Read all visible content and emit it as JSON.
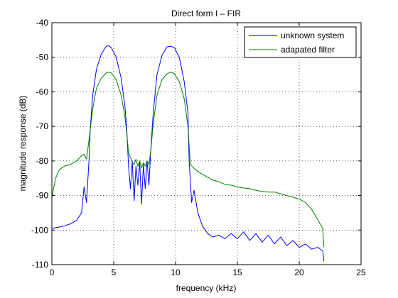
{
  "chart_data": {
    "type": "line",
    "title": "Direct form I – FIR",
    "xlabel": "frequency (kHz)",
    "ylabel": "magnitude response (dB)",
    "xlim": [
      0,
      25
    ],
    "ylim": [
      -110,
      -40
    ],
    "xticks": [
      0,
      5,
      10,
      15,
      20,
      25
    ],
    "yticks": [
      -40,
      -50,
      -60,
      -70,
      -80,
      -90,
      -100,
      -110
    ],
    "grid": "dotted",
    "legend_position": "top-right",
    "series": [
      {
        "name": "unknown system",
        "color": "#0000ff",
        "x": [
          0,
          0.5,
          1.0,
          1.5,
          2.0,
          2.4,
          2.6,
          2.8,
          3.0,
          3.1,
          3.3,
          3.6,
          4.0,
          4.4,
          4.6,
          4.8,
          5.2,
          5.6,
          5.9,
          6.05,
          6.2,
          6.35,
          6.5,
          6.65,
          6.8,
          6.95,
          7.1,
          7.25,
          7.4,
          7.55,
          7.7,
          7.85,
          8.0,
          8.2,
          8.5,
          8.9,
          9.3,
          9.6,
          9.9,
          10.3,
          10.7,
          11.0,
          11.1,
          11.3,
          11.5,
          11.8,
          12.2,
          12.6,
          13.0,
          13.5,
          14.0,
          14.5,
          15.0,
          15.5,
          16.0,
          16.5,
          17.0,
          17.5,
          18.0,
          18.5,
          19.0,
          19.5,
          20.0,
          20.5,
          21.0,
          21.5,
          21.9,
          22.0
        ],
        "values": [
          -99.5,
          -99.2,
          -98.8,
          -98.2,
          -97.2,
          -95.0,
          -87.5,
          -92.0,
          -80.0,
          -71.0,
          -61.0,
          -53.5,
          -49.0,
          -46.8,
          -46.7,
          -47.2,
          -50.0,
          -56.0,
          -64.0,
          -70.5,
          -81.5,
          -88.0,
          -80.0,
          -91.5,
          -81.5,
          -87.0,
          -80.5,
          -92.5,
          -81.0,
          -88.0,
          -80.0,
          -87.0,
          -76.5,
          -66.0,
          -55.0,
          -49.5,
          -47.0,
          -46.8,
          -47.2,
          -50.0,
          -57.0,
          -66.0,
          -80.0,
          -92.0,
          -88.5,
          -95.0,
          -99.0,
          -101.0,
          -102.0,
          -101.5,
          -102.5,
          -101.0,
          -102.5,
          -100.5,
          -103.0,
          -101.0,
          -103.5,
          -101.5,
          -104.0,
          -102.0,
          -104.5,
          -103.0,
          -105.0,
          -104.0,
          -105.5,
          -105.0,
          -106.0,
          -109.0
        ]
      },
      {
        "name": "adapated filter",
        "color": "#008000",
        "x": [
          0,
          0.3,
          0.6,
          1.0,
          1.5,
          2.0,
          2.4,
          2.6,
          2.8,
          3.0,
          3.3,
          3.6,
          4.0,
          4.4,
          4.6,
          4.8,
          5.2,
          5.6,
          5.9,
          6.05,
          6.2,
          6.35,
          6.5,
          6.65,
          6.8,
          6.95,
          7.1,
          7.25,
          7.4,
          7.55,
          7.7,
          7.85,
          8.0,
          8.2,
          8.5,
          8.9,
          9.3,
          9.6,
          9.9,
          10.3,
          10.7,
          11.0,
          11.2,
          11.6,
          12.0,
          12.5,
          13.0,
          13.5,
          14.0,
          14.5,
          15.0,
          15.5,
          16.0,
          16.5,
          17.0,
          17.5,
          18.0,
          18.5,
          19.0,
          19.5,
          20.0,
          20.5,
          21.0,
          21.5,
          21.9,
          22.0
        ],
        "values": [
          -90.5,
          -85.0,
          -82.5,
          -81.5,
          -81.0,
          -80.0,
          -78.5,
          -78.0,
          -79.5,
          -74.0,
          -65.0,
          -59.0,
          -56.0,
          -54.5,
          -54.3,
          -54.5,
          -56.5,
          -61.0,
          -67.0,
          -72.0,
          -77.5,
          -79.0,
          -80.5,
          -81.0,
          -79.5,
          -81.5,
          -80.0,
          -82.0,
          -80.5,
          -81.5,
          -80.0,
          -81.0,
          -77.0,
          -69.0,
          -61.0,
          -56.5,
          -54.8,
          -54.3,
          -54.7,
          -57.0,
          -62.0,
          -70.0,
          -81.0,
          -82.5,
          -83.5,
          -84.5,
          -85.5,
          -86.0,
          -86.8,
          -87.0,
          -87.5,
          -87.8,
          -88.0,
          -88.5,
          -88.8,
          -89.0,
          -89.0,
          -89.5,
          -90.0,
          -90.5,
          -91.0,
          -92.0,
          -94.0,
          -97.0,
          -99.5,
          -105.0
        ]
      }
    ]
  }
}
